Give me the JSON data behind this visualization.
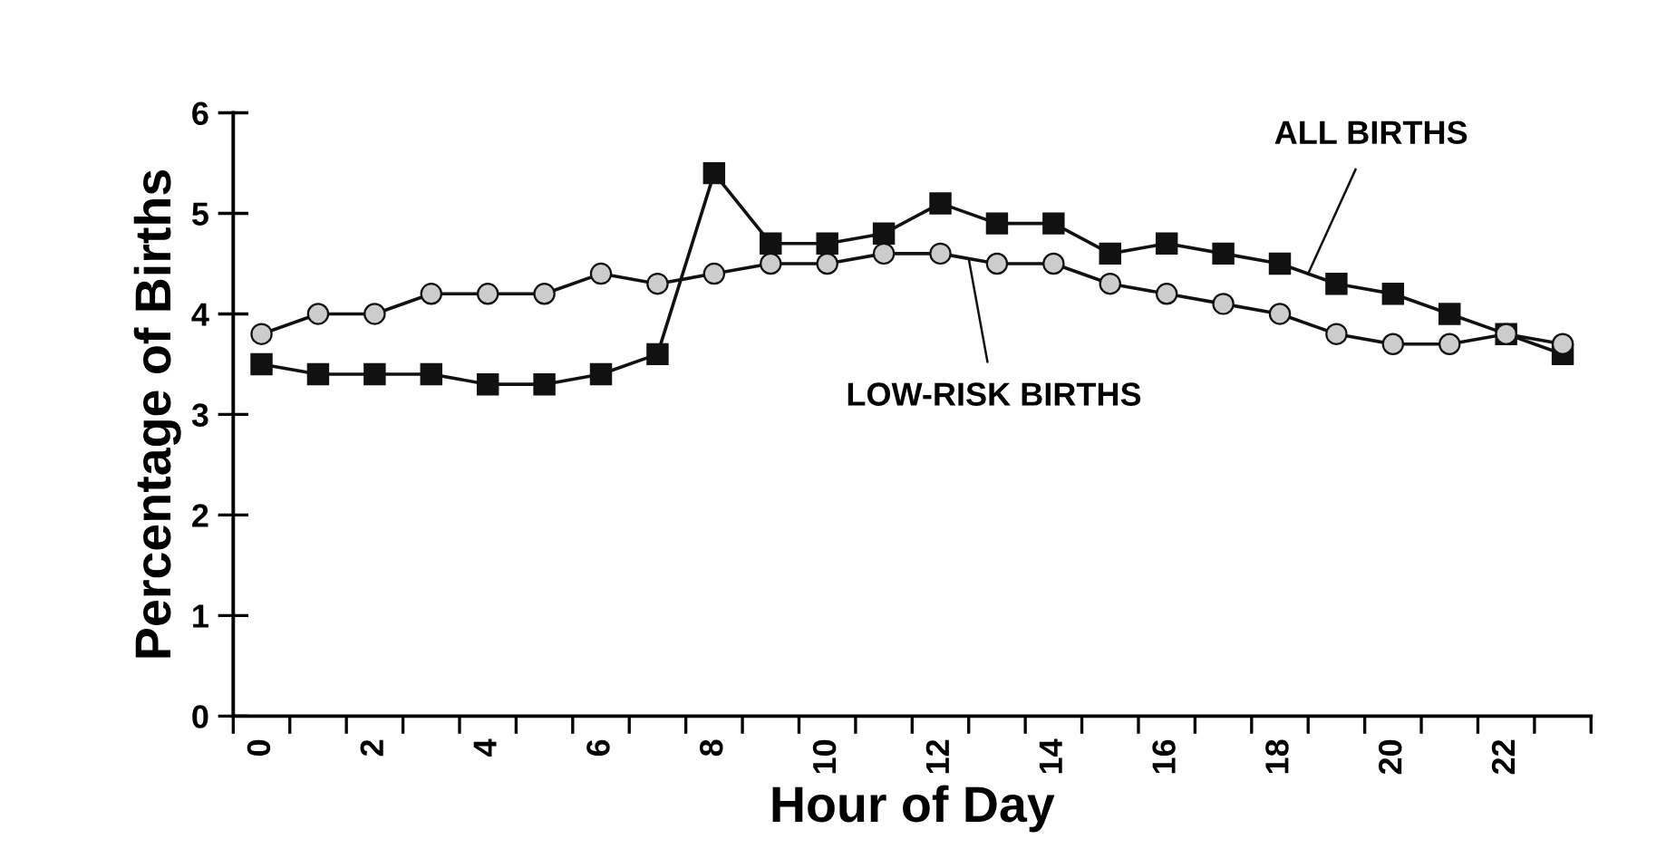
{
  "chart_data": {
    "type": "line",
    "xlabel": "Hour of Day",
    "ylabel": "Percentage of Births",
    "x": [
      0,
      1,
      2,
      3,
      4,
      5,
      6,
      7,
      8,
      9,
      10,
      11,
      12,
      13,
      14,
      15,
      16,
      17,
      18,
      19,
      20,
      21,
      22,
      23
    ],
    "xlim": [
      -0.5,
      23.5
    ],
    "xticks": [
      {
        "value": -0.5,
        "label": null
      },
      {
        "value": 0,
        "label": "0"
      },
      {
        "value": 0.5,
        "label": null
      },
      {
        "value": 1.5,
        "label": null
      },
      {
        "value": 2,
        "label": "2"
      },
      {
        "value": 2.5,
        "label": null
      },
      {
        "value": 3.5,
        "label": null
      },
      {
        "value": 4,
        "label": "4"
      },
      {
        "value": 4.5,
        "label": null
      },
      {
        "value": 5.5,
        "label": null
      },
      {
        "value": 6,
        "label": "6"
      },
      {
        "value": 6.5,
        "label": null
      },
      {
        "value": 7.5,
        "label": null
      },
      {
        "value": 8,
        "label": "8"
      },
      {
        "value": 8.5,
        "label": null
      },
      {
        "value": 9.5,
        "label": null
      },
      {
        "value": 10,
        "label": "10"
      },
      {
        "value": 10.5,
        "label": null
      },
      {
        "value": 11.5,
        "label": null
      },
      {
        "value": 12,
        "label": "12"
      },
      {
        "value": 12.5,
        "label": null
      },
      {
        "value": 13.5,
        "label": null
      },
      {
        "value": 14,
        "label": "14"
      },
      {
        "value": 14.5,
        "label": null
      },
      {
        "value": 15.5,
        "label": null
      },
      {
        "value": 16,
        "label": "16"
      },
      {
        "value": 16.5,
        "label": null
      },
      {
        "value": 17.5,
        "label": null
      },
      {
        "value": 18,
        "label": "18"
      },
      {
        "value": 18.5,
        "label": null
      },
      {
        "value": 19.5,
        "label": null
      },
      {
        "value": 20,
        "label": "20"
      },
      {
        "value": 20.5,
        "label": null
      },
      {
        "value": 21.5,
        "label": null
      },
      {
        "value": 22,
        "label": "22"
      },
      {
        "value": 22.5,
        "label": null
      },
      {
        "value": 23.5,
        "label": null
      }
    ],
    "ylim": [
      0,
      6
    ],
    "yticks": [
      0,
      1,
      2,
      3,
      4,
      5,
      6
    ],
    "grid": false,
    "legend": false,
    "line_style": "solid",
    "series": [
      {
        "name": "ALL BIRTHS",
        "color": "#111111",
        "marker": "square",
        "values": [
          3.5,
          3.4,
          3.4,
          3.4,
          3.3,
          3.3,
          3.4,
          3.6,
          5.4,
          4.7,
          4.7,
          4.8,
          5.1,
          4.9,
          4.9,
          4.6,
          4.7,
          4.6,
          4.5,
          4.3,
          4.2,
          4.0,
          3.8,
          3.6
        ]
      },
      {
        "name": "LOW-RISK BIRTHS",
        "color": "#cccccc",
        "marker": "circle",
        "values": [
          3.8,
          4.0,
          4.0,
          4.2,
          4.2,
          4.2,
          4.4,
          4.3,
          4.4,
          4.5,
          4.5,
          4.6,
          4.6,
          4.5,
          4.5,
          4.3,
          4.2,
          4.1,
          4.0,
          3.8,
          3.7,
          3.7,
          3.8,
          3.7
        ]
      }
    ]
  }
}
